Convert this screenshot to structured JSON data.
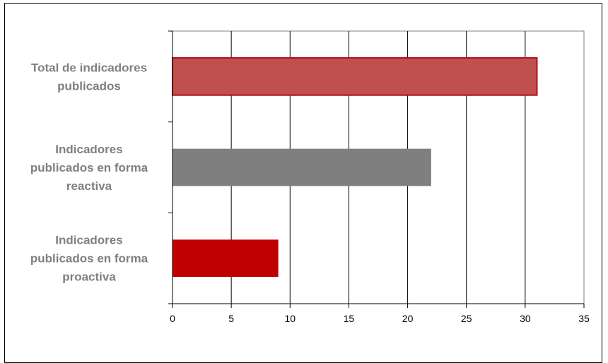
{
  "chart_data": {
    "type": "bar",
    "orientation": "horizontal",
    "categories": [
      "Total de indicadores publicados",
      "Indicadores publicados en forma reactiva",
      "Indicadores publicados en forma proactiva"
    ],
    "category_lines": [
      [
        "Total de indicadores",
        "publicados"
      ],
      [
        "Indicadores",
        "publicados en forma",
        "reactiva"
      ],
      [
        "Indicadores",
        "publicados en forma",
        "proactiva"
      ]
    ],
    "values": [
      31,
      22,
      9
    ],
    "colors": [
      "#c0504d",
      "#7f7f7f",
      "#c00000"
    ],
    "label_color": "#7f7f7f",
    "xlim": [
      0,
      35
    ],
    "xticks": [
      0,
      5,
      10,
      15,
      20,
      25,
      30,
      35
    ],
    "grid": true,
    "legend": "none",
    "title": "",
    "xlabel": "",
    "ylabel": ""
  }
}
